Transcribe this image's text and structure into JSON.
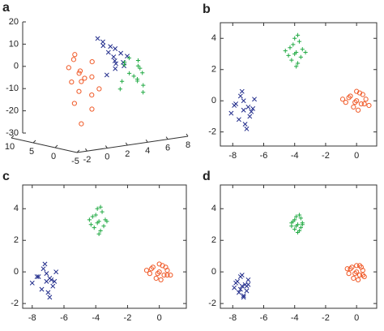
{
  "chart_data": [
    {
      "type": "scatter3d",
      "title": "a",
      "xlim": [
        -3,
        8
      ],
      "xticks": [
        -2,
        0,
        2,
        4,
        6,
        8
      ],
      "ylim": [
        -5,
        10
      ],
      "yticks": [
        10,
        5,
        0,
        -5
      ],
      "zlim": [
        -30,
        20
      ],
      "zticks": [
        20,
        10,
        0,
        -10,
        -20,
        -30
      ],
      "series": [
        {
          "color": "#f05a28",
          "marker": "circle",
          "x": [
            -0.4,
            -1.0,
            0.2,
            -0.7,
            0.5,
            -0.1,
            -1.3,
            0.8,
            -0.5,
            0.0,
            -0.9,
            0.3,
            -0.2,
            -0.6,
            0.1,
            -0.4
          ],
          "y": [
            0.0,
            1.5,
            -1.0,
            0.8,
            -2.0,
            1.2,
            -0.5,
            0.3,
            2.0,
            -1.5,
            0.6,
            -0.8,
            1.0,
            -0.2,
            0.4,
            0.0
          ],
          "z": [
            -2,
            4,
            -8,
            10,
            -5,
            1,
            -11,
            6,
            -3,
            -14,
            8,
            0,
            -7,
            3,
            -1,
            -21
          ]
        },
        {
          "color": "#1f2a8a",
          "marker": "x",
          "x": [
            2.8,
            2.2,
            3.4,
            2.5,
            3.1,
            2.0,
            3.6,
            2.7,
            3.0,
            2.4,
            3.3,
            2.9,
            2.6,
            3.8,
            2.3
          ],
          "y": [
            0,
            1,
            -1,
            0.5,
            -1.5,
            1.8,
            0.2,
            -0.6,
            1.2,
            -1.2,
            0.8,
            -0.3,
            2,
            -0.8,
            0.4
          ],
          "z": [
            7,
            12,
            3,
            9,
            5,
            15,
            8,
            2,
            11,
            6,
            10,
            4,
            13,
            7,
            -1
          ]
        },
        {
          "color": "#22aa44",
          "marker": "plus",
          "x": [
            4.8,
            4.3,
            5.3,
            4.6,
            5.0,
            4.1,
            5.5,
            4.9,
            4.4,
            5.2,
            4.7,
            5.1,
            4.5,
            4.8,
            5.4
          ],
          "y": [
            0,
            1,
            -1,
            0.6,
            -1.5,
            1.5,
            0.2,
            -0.6,
            1.2,
            -1.2,
            0.8,
            -0.3,
            2,
            -0.8,
            0.4
          ],
          "z": [
            -3,
            2,
            -7,
            5,
            -1,
            -9,
            0,
            -5,
            3,
            -10,
            -2,
            4,
            -6,
            -4,
            1
          ]
        }
      ]
    },
    {
      "type": "scatter",
      "title": "b",
      "xlim": [
        -8.8,
        1.3
      ],
      "xticks": [
        -8,
        -6,
        -4,
        -2,
        0
      ],
      "ylim": [
        -2.9,
        5.0
      ],
      "yticks": [
        -2,
        0,
        2,
        4
      ],
      "series": [
        {
          "color": "#1f2a8a",
          "marker": "x",
          "x": [
            -7.3,
            -7.8,
            -6.9,
            -7.5,
            -7.0,
            -8.1,
            -6.6,
            -7.2,
            -7.6,
            -6.8,
            -7.4,
            -7.9,
            -7.1,
            -6.7,
            -7.3
          ],
          "y": [
            -0.6,
            -0.2,
            -1.0,
            0.3,
            -0.4,
            -0.8,
            0.1,
            -1.5,
            -1.2,
            -0.7,
            0.6,
            -0.3,
            -1.8,
            -0.5,
            0.0
          ]
        },
        {
          "color": "#22aa44",
          "marker": "plus",
          "x": [
            -3.9,
            -4.3,
            -3.6,
            -4.0,
            -3.5,
            -4.4,
            -3.8,
            -4.1,
            -3.3,
            -4.6,
            -3.9,
            -3.7,
            -4.2,
            -4.0,
            -3.8
          ],
          "y": [
            3.1,
            3.4,
            2.8,
            4.0,
            3.3,
            2.9,
            2.4,
            3.6,
            3.1,
            3.2,
            2.2,
            3.8,
            2.6,
            3.0,
            4.2
          ]
        },
        {
          "color": "#f05a28",
          "marker": "circle",
          "x": [
            0.0,
            -0.4,
            0.3,
            0.6,
            -0.7,
            0.2,
            -0.2,
            0.8,
            -0.5,
            0.1,
            0.4,
            -0.1,
            -0.9,
            0.5,
            0.0
          ],
          "y": [
            0.0,
            0.3,
            -0.2,
            0.1,
            -0.1,
            0.5,
            -0.4,
            -0.3,
            0.2,
            -0.6,
            0.4,
            -0.1,
            0.1,
            -0.2,
            0.6
          ]
        }
      ]
    },
    {
      "type": "scatter",
      "title": "c",
      "xlim": [
        -8.6,
        1.7
      ],
      "xticks": [
        -8,
        -6,
        -4,
        -2,
        0
      ],
      "ylim": [
        -2.3,
        5.5
      ],
      "yticks": [
        -2,
        0,
        2,
        4
      ],
      "series": [
        {
          "color": "#1f2a8a",
          "marker": "x",
          "x": [
            -7.1,
            -7.6,
            -6.7,
            -7.3,
            -6.9,
            -8.0,
            -6.5,
            -7.0,
            -7.4,
            -6.6,
            -7.2,
            -7.7,
            -6.9,
            -6.8,
            -7.1
          ],
          "y": [
            -0.6,
            -0.3,
            -0.9,
            0.2,
            -0.4,
            -0.7,
            0.0,
            -1.3,
            -1.1,
            -0.6,
            0.5,
            -0.3,
            -1.6,
            -0.5,
            -0.1
          ]
        },
        {
          "color": "#22aa44",
          "marker": "plus",
          "x": [
            -3.8,
            -4.2,
            -3.5,
            -3.9,
            -3.4,
            -4.3,
            -3.7,
            -4.0,
            -3.3,
            -4.4,
            -3.8,
            -3.6,
            -4.1,
            -3.9,
            -3.7
          ],
          "y": [
            3.2,
            3.5,
            2.9,
            4.0,
            3.3,
            3.0,
            2.6,
            3.6,
            3.2,
            3.3,
            2.4,
            3.8,
            2.8,
            3.1,
            4.1
          ]
        },
        {
          "color": "#f05a28",
          "marker": "circle",
          "x": [
            0.0,
            -0.4,
            0.3,
            0.5,
            -0.6,
            0.2,
            -0.2,
            0.7,
            -0.5,
            0.1,
            0.4,
            -0.1,
            -0.8,
            0.5,
            0.0
          ],
          "y": [
            0.0,
            0.3,
            -0.2,
            0.1,
            -0.1,
            0.4,
            -0.4,
            -0.2,
            0.2,
            -0.5,
            0.3,
            -0.1,
            0.1,
            -0.2,
            0.5
          ]
        }
      ]
    },
    {
      "type": "scatter",
      "title": "d",
      "xlim": [
        -8.8,
        1.3
      ],
      "xticks": [
        -8,
        -6,
        -4,
        -2,
        0
      ],
      "ylim": [
        -2.3,
        5.5
      ],
      "yticks": [
        -2,
        0,
        2,
        4
      ],
      "series": [
        {
          "color": "#1f2a8a",
          "marker": "x",
          "x": [
            -7.4,
            -7.7,
            -7.1,
            -7.5,
            -7.2,
            -7.9,
            -7.0,
            -7.3,
            -7.6,
            -7.1,
            -7.4,
            -7.8,
            -7.3,
            -7.0,
            -7.5
          ],
          "y": [
            -0.9,
            -0.6,
            -1.2,
            -0.3,
            -0.8,
            -1.0,
            -0.5,
            -1.5,
            -1.3,
            -0.9,
            -0.2,
            -0.7,
            -1.6,
            -0.8,
            -1.1
          ]
        },
        {
          "color": "#22aa44",
          "marker": "plus",
          "x": [
            -3.8,
            -4.1,
            -3.6,
            -3.9,
            -3.5,
            -4.2,
            -3.7,
            -4.0,
            -3.5,
            -4.2,
            -3.8,
            -3.6,
            -4.0,
            -3.9,
            -3.7
          ],
          "y": [
            3.0,
            3.2,
            2.8,
            3.5,
            3.1,
            2.9,
            2.6,
            3.3,
            3.0,
            3.1,
            2.5,
            3.4,
            2.7,
            2.9,
            3.6
          ]
        },
        {
          "color": "#f05a28",
          "marker": "circle",
          "x": [
            0.0,
            -0.3,
            0.2,
            0.4,
            -0.5,
            0.2,
            -0.2,
            0.5,
            -0.4,
            0.1,
            0.3,
            -0.1,
            -0.6,
            0.4,
            0.0
          ],
          "y": [
            0.0,
            0.3,
            -0.2,
            0.1,
            -0.1,
            0.4,
            -0.4,
            -0.3,
            0.2,
            -0.5,
            0.3,
            -0.1,
            0.2,
            -0.2,
            0.4
          ]
        }
      ]
    }
  ]
}
